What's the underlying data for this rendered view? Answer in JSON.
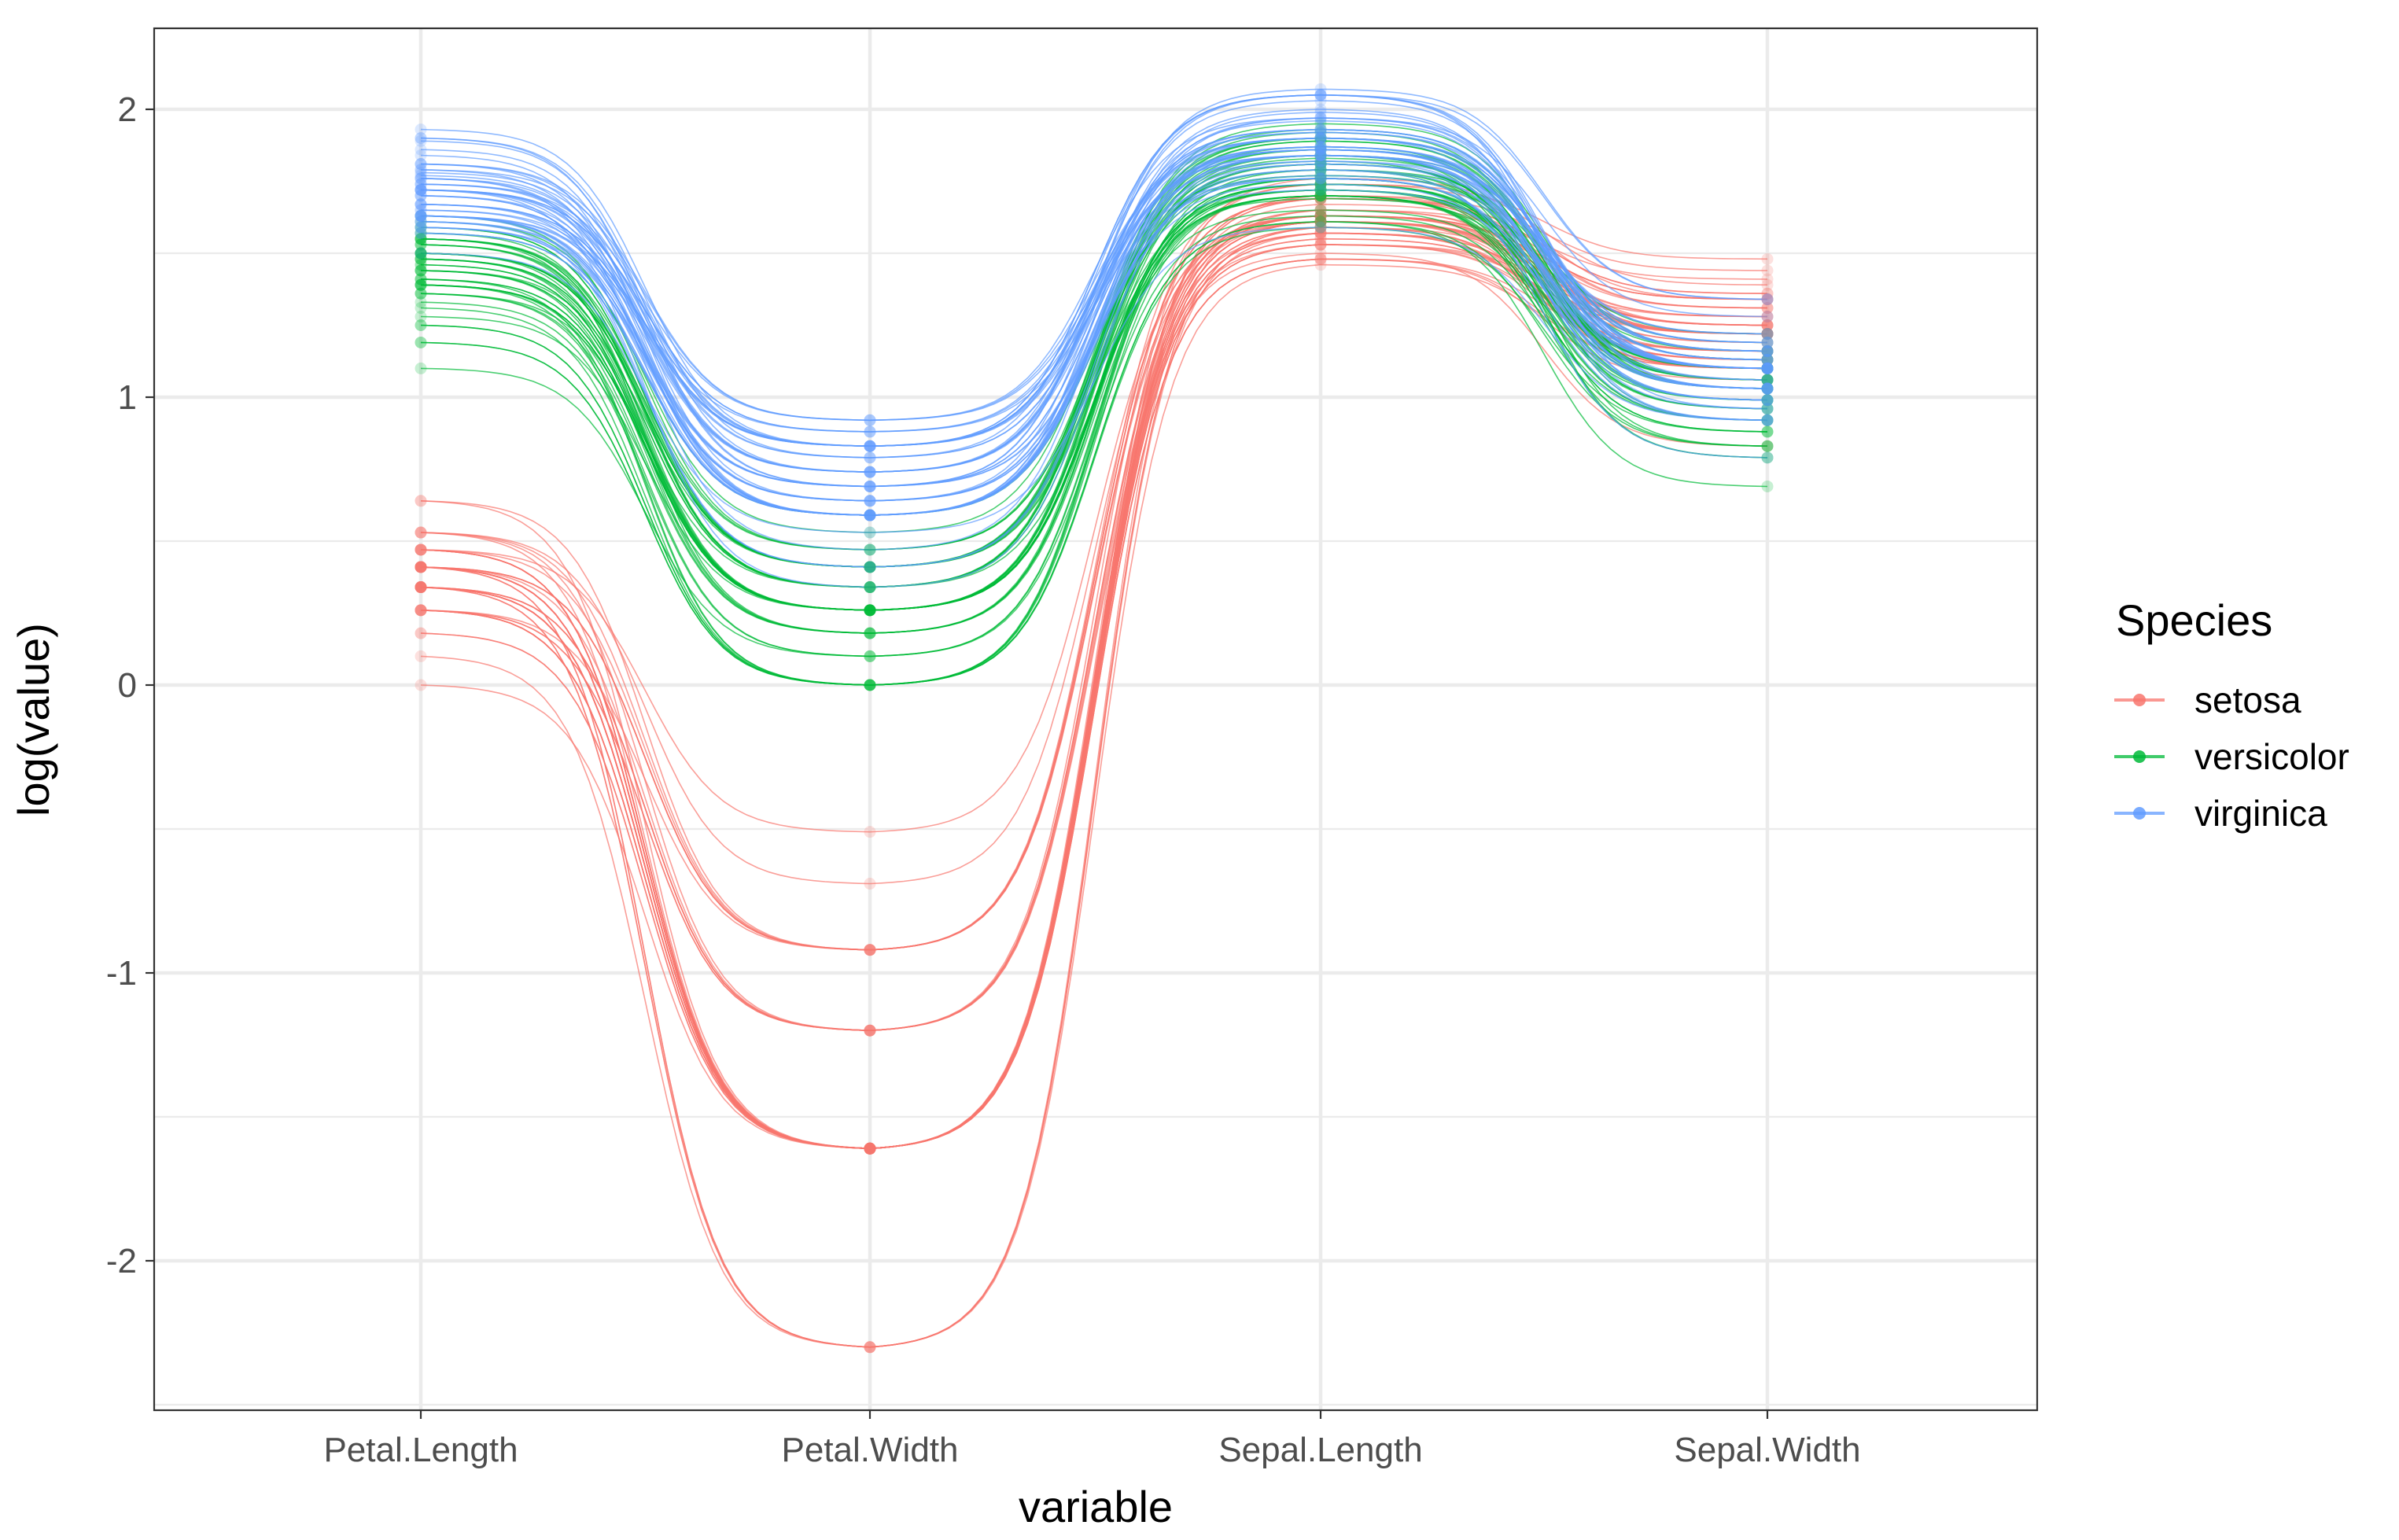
{
  "chart_data": {
    "type": "line",
    "categories": [
      "Petal.Length",
      "Petal.Width",
      "Sepal.Length",
      "Sepal.Width"
    ],
    "xlabel": "variable",
    "ylabel": "log(value)",
    "ylim": [
      -2.5,
      2.25
    ],
    "yticks": [
      -2,
      -1,
      0,
      1,
      2
    ],
    "grid": true,
    "legend": {
      "title": "Species",
      "position": "right"
    },
    "series": [
      {
        "name": "setosa",
        "color": "#F8766D",
        "lines": [
          [
            0.34,
            -1.61,
            1.63,
            1.25
          ],
          [
            0.34,
            -1.61,
            1.59,
            1.1
          ],
          [
            0.26,
            -1.61,
            1.55,
            1.16
          ],
          [
            0.41,
            -1.61,
            1.53,
            1.13
          ],
          [
            0.34,
            -1.61,
            1.61,
            1.28
          ],
          [
            0.53,
            -0.92,
            1.69,
            1.36
          ],
          [
            0.34,
            -1.2,
            1.53,
            1.22
          ],
          [
            0.41,
            -1.61,
            1.61,
            1.22
          ],
          [
            0.34,
            -1.61,
            1.48,
            1.06
          ],
          [
            0.41,
            -2.3,
            1.59,
            1.13
          ],
          [
            0.41,
            -1.61,
            1.69,
            1.31
          ],
          [
            0.47,
            -1.61,
            1.57,
            1.22
          ],
          [
            0.34,
            -2.3,
            1.57,
            1.1
          ],
          [
            0.1,
            -2.3,
            1.46,
            1.1
          ],
          [
            0.18,
            -1.61,
            1.76,
            1.39
          ],
          [
            0.41,
            -0.92,
            1.74,
            1.48
          ],
          [
            0.26,
            -0.92,
            1.69,
            1.36
          ],
          [
            0.34,
            -1.2,
            1.63,
            1.25
          ],
          [
            0.53,
            -1.2,
            1.74,
            1.34
          ],
          [
            0.41,
            -1.2,
            1.63,
            1.34
          ],
          [
            0.53,
            -1.61,
            1.69,
            1.22
          ],
          [
            0.41,
            -0.92,
            1.63,
            1.31
          ],
          [
            0.0,
            -1.61,
            1.53,
            1.28
          ],
          [
            0.53,
            -0.69,
            1.63,
            1.19
          ],
          [
            0.64,
            -1.61,
            1.57,
            1.22
          ],
          [
            0.47,
            -1.61,
            1.61,
            1.1
          ],
          [
            0.47,
            -0.92,
            1.61,
            1.22
          ],
          [
            0.41,
            -1.61,
            1.65,
            1.25
          ],
          [
            0.34,
            -1.61,
            1.65,
            1.22
          ],
          [
            0.47,
            -1.61,
            1.55,
            1.16
          ],
          [
            0.47,
            -1.61,
            1.57,
            1.13
          ],
          [
            0.41,
            -0.92,
            1.69,
            1.22
          ],
          [
            0.41,
            -2.3,
            1.65,
            1.41
          ],
          [
            0.34,
            -1.61,
            1.7,
            1.44
          ],
          [
            0.41,
            -1.61,
            1.59,
            1.13
          ],
          [
            0.18,
            -1.61,
            1.61,
            1.16
          ],
          [
            0.26,
            -1.61,
            1.7,
            1.25
          ],
          [
            0.34,
            -2.3,
            1.59,
            1.28
          ],
          [
            0.26,
            -1.61,
            1.48,
            1.1
          ],
          [
            0.41,
            -1.61,
            1.63,
            1.22
          ],
          [
            0.26,
            -1.2,
            1.61,
            1.25
          ],
          [
            0.26,
            -1.2,
            1.5,
            0.83
          ],
          [
            0.26,
            -1.61,
            1.48,
            1.16
          ],
          [
            0.47,
            -0.51,
            1.61,
            1.25
          ],
          [
            0.64,
            -0.92,
            1.63,
            1.34
          ],
          [
            0.34,
            -1.2,
            1.57,
            1.1
          ],
          [
            0.47,
            -1.61,
            1.63,
            1.34
          ],
          [
            0.34,
            -1.61,
            1.53,
            1.16
          ],
          [
            0.41,
            -1.61,
            1.67,
            1.31
          ],
          [
            0.34,
            -1.61,
            1.61,
            1.19
          ]
        ]
      },
      {
        "name": "versicolor",
        "color": "#00BA38",
        "lines": [
          [
            1.55,
            0.34,
            1.95,
            1.16
          ],
          [
            1.5,
            0.41,
            1.86,
            1.16
          ],
          [
            1.59,
            0.41,
            1.93,
            1.13
          ],
          [
            1.39,
            0.26,
            1.7,
            0.83
          ],
          [
            1.53,
            0.41,
            1.87,
            1.03
          ],
          [
            1.5,
            0.26,
            1.74,
            1.03
          ],
          [
            1.55,
            0.47,
            1.84,
            1.19
          ],
          [
            1.19,
            0.0,
            1.59,
            0.88
          ],
          [
            1.53,
            0.26,
            1.89,
            1.06
          ],
          [
            1.36,
            0.34,
            1.65,
            0.99
          ],
          [
            1.25,
            0.0,
            1.61,
            0.69
          ],
          [
            1.44,
            0.41,
            1.77,
            1.1
          ],
          [
            1.39,
            0.0,
            1.79,
            0.79
          ],
          [
            1.55,
            0.34,
            1.81,
            1.06
          ],
          [
            1.28,
            0.26,
            1.72,
            1.06
          ],
          [
            1.48,
            0.34,
            1.9,
            1.13
          ],
          [
            1.5,
            0.41,
            1.72,
            1.1
          ],
          [
            1.41,
            0.0,
            1.76,
            0.99
          ],
          [
            1.5,
            0.41,
            1.82,
            0.79
          ],
          [
            1.36,
            0.1,
            1.72,
            0.92
          ],
          [
            1.57,
            0.59,
            1.77,
            1.16
          ],
          [
            1.39,
            0.26,
            1.81,
            1.03
          ],
          [
            1.59,
            0.41,
            1.84,
            0.92
          ],
          [
            1.55,
            0.18,
            1.81,
            1.03
          ],
          [
            1.46,
            0.26,
            1.86,
            1.06
          ],
          [
            1.48,
            0.34,
            1.89,
            1.1
          ],
          [
            1.57,
            0.34,
            1.92,
            1.03
          ],
          [
            1.61,
            0.53,
            1.9,
            1.1
          ],
          [
            1.5,
            0.41,
            1.79,
            1.06
          ],
          [
            1.25,
            0.0,
            1.74,
            0.96
          ],
          [
            1.33,
            0.1,
            1.7,
            0.88
          ],
          [
            1.31,
            0.0,
            1.7,
            0.88
          ],
          [
            1.36,
            0.18,
            1.76,
            0.99
          ],
          [
            1.63,
            0.47,
            1.79,
            0.99
          ],
          [
            1.5,
            0.41,
            1.69,
            1.1
          ],
          [
            1.5,
            0.47,
            1.79,
            1.22
          ],
          [
            1.55,
            0.41,
            1.9,
            1.13
          ],
          [
            1.48,
            0.26,
            1.84,
            0.83
          ],
          [
            1.41,
            0.26,
            1.72,
            1.1
          ],
          [
            1.39,
            0.26,
            1.7,
            0.92
          ],
          [
            1.48,
            0.18,
            1.7,
            0.96
          ],
          [
            1.53,
            0.34,
            1.81,
            1.1
          ],
          [
            1.39,
            0.18,
            1.76,
            0.96
          ],
          [
            1.19,
            0.0,
            1.61,
            0.83
          ],
          [
            1.44,
            0.26,
            1.72,
            0.99
          ],
          [
            1.44,
            0.18,
            1.74,
            1.1
          ],
          [
            1.44,
            0.26,
            1.74,
            1.06
          ],
          [
            1.46,
            0.26,
            1.83,
            1.06
          ],
          [
            1.1,
            0.1,
            1.63,
            0.92
          ],
          [
            1.41,
            0.26,
            1.74,
            1.03
          ]
        ]
      },
      {
        "name": "virginica",
        "color": "#619CFF",
        "lines": [
          [
            1.79,
            0.92,
            1.84,
            1.19
          ],
          [
            1.63,
            0.64,
            1.76,
            0.99
          ],
          [
            1.77,
            0.74,
            1.96,
            1.1
          ],
          [
            1.72,
            0.59,
            1.84,
            1.06
          ],
          [
            1.76,
            0.79,
            1.87,
            1.1
          ],
          [
            1.89,
            0.74,
            2.03,
            1.1
          ],
          [
            1.5,
            0.53,
            1.59,
            0.92
          ],
          [
            1.84,
            0.59,
            1.99,
            1.06
          ],
          [
            1.76,
            0.59,
            1.9,
            0.92
          ],
          [
            1.81,
            0.92,
            1.97,
            1.28
          ],
          [
            1.63,
            0.69,
            1.87,
            1.16
          ],
          [
            1.67,
            0.64,
            1.86,
            0.99
          ],
          [
            1.7,
            0.74,
            1.92,
            1.1
          ],
          [
            1.61,
            0.69,
            1.74,
            0.92
          ],
          [
            1.63,
            0.88,
            1.76,
            1.03
          ],
          [
            1.67,
            0.83,
            1.86,
            1.16
          ],
          [
            1.7,
            0.59,
            1.87,
            1.1
          ],
          [
            1.9,
            0.79,
            2.05,
            1.34
          ],
          [
            1.93,
            0.83,
            2.05,
            0.96
          ],
          [
            1.61,
            0.41,
            1.79,
            0.79
          ],
          [
            1.74,
            0.83,
            1.93,
            1.16
          ],
          [
            1.59,
            0.69,
            1.72,
            1.03
          ],
          [
            1.9,
            0.69,
            2.05,
            1.03
          ],
          [
            1.59,
            0.59,
            1.84,
            0.99
          ],
          [
            1.74,
            0.74,
            1.9,
            1.19
          ],
          [
            1.79,
            0.59,
            1.97,
            1.16
          ],
          [
            1.57,
            0.59,
            1.82,
            1.03
          ],
          [
            1.59,
            0.59,
            1.81,
            1.1
          ],
          [
            1.72,
            0.74,
            1.86,
            1.03
          ],
          [
            1.76,
            0.47,
            1.97,
            1.1
          ],
          [
            1.81,
            0.64,
            2.0,
            1.03
          ],
          [
            1.86,
            0.69,
            2.07,
            1.34
          ],
          [
            1.72,
            0.79,
            1.86,
            1.03
          ],
          [
            1.63,
            0.41,
            1.84,
            1.03
          ],
          [
            1.72,
            0.34,
            1.81,
            0.96
          ],
          [
            1.81,
            0.83,
            2.05,
            1.1
          ],
          [
            1.72,
            0.88,
            1.84,
            1.22
          ],
          [
            1.7,
            0.59,
            1.86,
            1.13
          ],
          [
            1.57,
            0.59,
            1.79,
            1.1
          ],
          [
            1.67,
            0.74,
            1.93,
            1.13
          ],
          [
            1.72,
            0.88,
            1.9,
            1.13
          ],
          [
            1.63,
            0.83,
            1.93,
            1.13
          ],
          [
            1.63,
            0.64,
            1.76,
            0.99
          ],
          [
            1.78,
            0.83,
            1.92,
            1.16
          ],
          [
            1.74,
            0.92,
            1.9,
            1.19
          ],
          [
            1.65,
            0.83,
            1.9,
            1.1
          ],
          [
            1.61,
            0.64,
            1.84,
            0.92
          ],
          [
            1.65,
            0.69,
            1.87,
            1.1
          ],
          [
            1.67,
            0.83,
            1.82,
            1.22
          ],
          [
            1.63,
            0.59,
            1.77,
            1.1
          ]
        ]
      }
    ]
  }
}
